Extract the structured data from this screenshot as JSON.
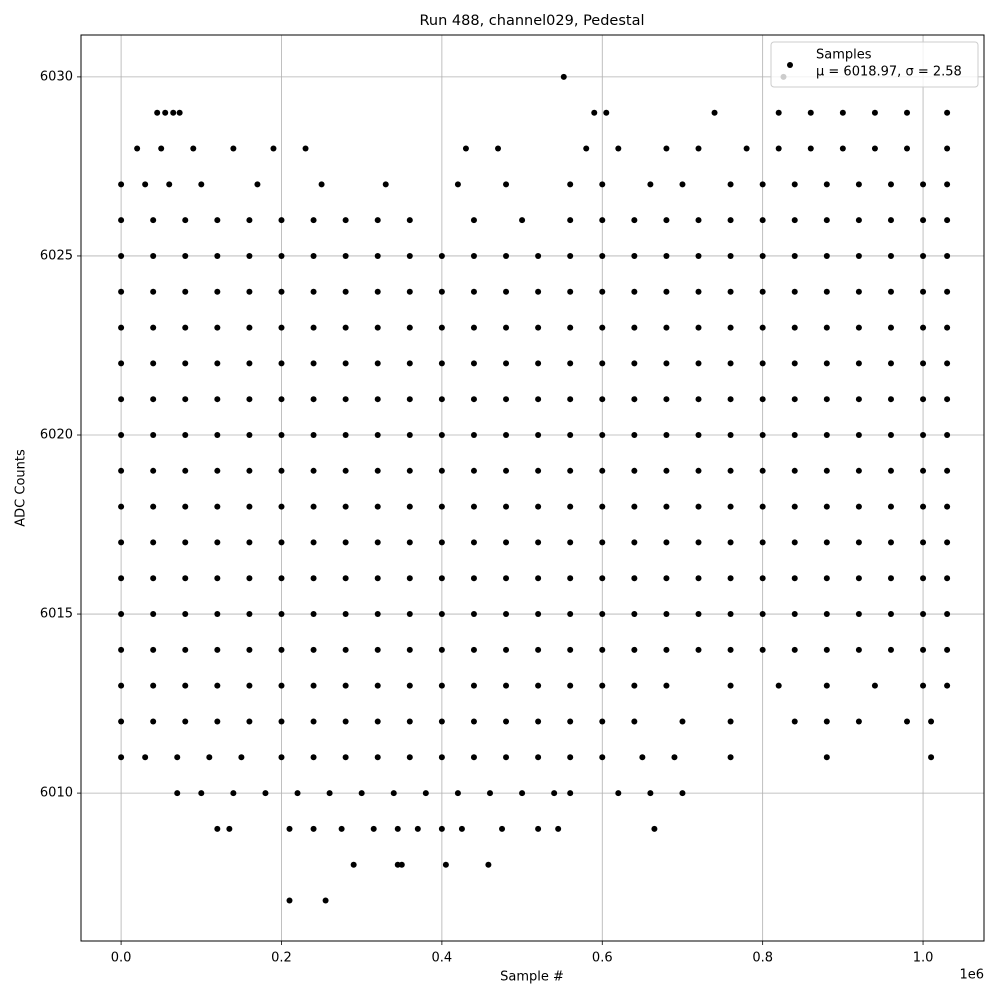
{
  "chart_data": {
    "type": "scatter",
    "title": "Run 488, channel029, Pedestal",
    "xlabel": "Sample #",
    "ylabel": "ADC Counts",
    "x_offset_label": "1e6",
    "xlim": [
      -50000,
      1076000
    ],
    "ylim": [
      6005.87,
      6031.17
    ],
    "xticks": [
      {
        "value": 0,
        "label": "0.0"
      },
      {
        "value": 200000,
        "label": "0.2"
      },
      {
        "value": 400000,
        "label": "0.4"
      },
      {
        "value": 600000,
        "label": "0.6"
      },
      {
        "value": 800000,
        "label": "0.8"
      },
      {
        "value": 1000000,
        "label": "1.0"
      }
    ],
    "yticks": [
      6010,
      6015,
      6020,
      6025,
      6030
    ],
    "grid": true,
    "legend": "upper right",
    "series": [
      {
        "name": "Samples",
        "legend_subtitle": "μ = 6018.97, σ = 2.58",
        "color": "#000000",
        "x": [
          0,
          40000,
          80000,
          120000,
          160000,
          200000,
          240000,
          280000,
          320000,
          360000,
          400000,
          440000,
          480000,
          520000,
          560000,
          600000,
          640000,
          680000,
          720000,
          760000,
          800000,
          840000,
          880000,
          920000,
          960000,
          1000000,
          1030000,
          0,
          40000,
          80000,
          120000,
          160000,
          200000,
          240000,
          280000,
          320000,
          360000,
          400000,
          440000,
          480000,
          520000,
          560000,
          600000,
          640000,
          680000,
          720000,
          760000,
          800000,
          840000,
          880000,
          920000,
          960000,
          1000000,
          1030000,
          0,
          40000,
          80000,
          120000,
          160000,
          200000,
          240000,
          280000,
          320000,
          360000,
          400000,
          440000,
          480000,
          520000,
          560000,
          600000,
          640000,
          680000,
          720000,
          760000,
          800000,
          840000,
          880000,
          920000,
          960000,
          1000000,
          1030000,
          0,
          40000,
          80000,
          120000,
          160000,
          200000,
          240000,
          280000,
          320000,
          360000,
          400000,
          440000,
          480000,
          520000,
          560000,
          600000,
          640000,
          680000,
          720000,
          760000,
          800000,
          840000,
          880000,
          920000,
          960000,
          1000000,
          1030000,
          0,
          40000,
          80000,
          120000,
          160000,
          200000,
          240000,
          280000,
          320000,
          360000,
          400000,
          440000,
          480000,
          520000,
          560000,
          600000,
          640000,
          680000,
          720000,
          760000,
          800000,
          840000,
          880000,
          920000,
          960000,
          1000000,
          1030000,
          0,
          40000,
          80000,
          120000,
          160000,
          200000,
          240000,
          280000,
          320000,
          360000,
          400000,
          440000,
          480000,
          520000,
          560000,
          600000,
          640000,
          680000,
          720000,
          760000,
          800000,
          840000,
          880000,
          920000,
          960000,
          1000000,
          1030000,
          0,
          40000,
          80000,
          120000,
          160000,
          200000,
          240000,
          280000,
          320000,
          360000,
          400000,
          440000,
          480000,
          520000,
          560000,
          600000,
          640000,
          680000,
          720000,
          760000,
          800000,
          840000,
          880000,
          920000,
          960000,
          1000000,
          1030000,
          0,
          40000,
          80000,
          120000,
          160000,
          200000,
          240000,
          280000,
          320000,
          360000,
          400000,
          440000,
          480000,
          520000,
          560000,
          600000,
          640000,
          680000,
          720000,
          760000,
          800000,
          840000,
          880000,
          920000,
          960000,
          1000000,
          1030000,
          0,
          40000,
          80000,
          120000,
          160000,
          200000,
          240000,
          280000,
          320000,
          360000,
          400000,
          440000,
          480000,
          520000,
          560000,
          600000,
          640000,
          680000,
          720000,
          760000,
          800000,
          840000,
          880000,
          920000,
          960000,
          1000000,
          1030000,
          0,
          40000,
          80000,
          120000,
          160000,
          200000,
          240000,
          280000,
          320000,
          360000,
          400000,
          440000,
          480000,
          520000,
          560000,
          600000,
          640000,
          680000,
          720000,
          760000,
          800000,
          840000,
          880000,
          920000,
          960000,
          1000000,
          1030000,
          0,
          40000,
          80000,
          120000,
          160000,
          200000,
          240000,
          280000,
          320000,
          360000,
          400000,
          440000,
          480000,
          520000,
          560000,
          600000,
          640000,
          680000,
          720000,
          760000,
          800000,
          840000,
          880000,
          920000,
          960000,
          1000000,
          1030000,
          0,
          40000,
          80000,
          120000,
          160000,
          200000,
          240000,
          280000,
          320000,
          360000,
          400000,
          440000,
          480000,
          520000,
          560000,
          600000,
          640000,
          680000,
          720000,
          760000,
          800000,
          840000,
          880000,
          920000,
          960000,
          1000000,
          1030000,
          0,
          40000,
          80000,
          120000,
          160000,
          200000,
          240000,
          280000,
          320000,
          360000,
          440000,
          500000,
          560000,
          600000,
          640000,
          680000,
          720000,
          760000,
          800000,
          840000,
          880000,
          920000,
          960000,
          1000000,
          1030000,
          0,
          40000,
          80000,
          120000,
          160000,
          200000,
          240000,
          280000,
          320000,
          360000,
          400000,
          440000,
          480000,
          520000,
          560000,
          600000,
          640000,
          680000,
          760000,
          820000,
          880000,
          940000,
          1000000,
          1030000,
          0,
          40000,
          80000,
          120000,
          160000,
          200000,
          240000,
          280000,
          320000,
          360000,
          400000,
          440000,
          480000,
          520000,
          560000,
          600000,
          640000,
          700000,
          760000,
          840000,
          880000,
          920000,
          980000,
          1010000,
          0,
          30000,
          60000,
          100000,
          170000,
          250000,
          330000,
          420000,
          480000,
          560000,
          600000,
          660000,
          700000,
          760000,
          800000,
          840000,
          880000,
          920000,
          960000,
          1000000,
          1030000,
          0,
          30000,
          70000,
          110000,
          150000,
          200000,
          240000,
          280000,
          320000,
          360000,
          400000,
          440000,
          480000,
          520000,
          560000,
          600000,
          650000,
          690000,
          760000,
          880000,
          1010000,
          20000,
          50000,
          90000,
          140000,
          190000,
          230000,
          430000,
          470000,
          580000,
          620000,
          680000,
          720000,
          780000,
          820000,
          860000,
          900000,
          940000,
          980000,
          1030000,
          70000,
          100000,
          140000,
          180000,
          220000,
          260000,
          300000,
          340000,
          380000,
          420000,
          460000,
          500000,
          540000,
          560000,
          620000,
          660000,
          700000,
          45000,
          55000,
          65000,
          73000,
          590000,
          605000,
          740000,
          820000,
          860000,
          900000,
          940000,
          980000,
          1030000,
          120000,
          135000,
          210000,
          240000,
          275000,
          315000,
          345000,
          370000,
          400000,
          425000,
          475000,
          520000,
          545000,
          665000,
          290000,
          345000,
          350000,
          405000,
          458000,
          210000,
          255000,
          552000,
          826000
        ],
        "values": [
          6014,
          6014,
          6014,
          6014,
          6014,
          6014,
          6014,
          6014,
          6014,
          6014,
          6014,
          6014,
          6014,
          6014,
          6014,
          6014,
          6014,
          6014,
          6014,
          6014,
          6014,
          6014,
          6014,
          6014,
          6014,
          6014,
          6014,
          6015,
          6015,
          6015,
          6015,
          6015,
          6015,
          6015,
          6015,
          6015,
          6015,
          6015,
          6015,
          6015,
          6015,
          6015,
          6015,
          6015,
          6015,
          6015,
          6015,
          6015,
          6015,
          6015,
          6015,
          6015,
          6015,
          6015,
          6016,
          6016,
          6016,
          6016,
          6016,
          6016,
          6016,
          6016,
          6016,
          6016,
          6016,
          6016,
          6016,
          6016,
          6016,
          6016,
          6016,
          6016,
          6016,
          6016,
          6016,
          6016,
          6016,
          6016,
          6016,
          6016,
          6016,
          6017,
          6017,
          6017,
          6017,
          6017,
          6017,
          6017,
          6017,
          6017,
          6017,
          6017,
          6017,
          6017,
          6017,
          6017,
          6017,
          6017,
          6017,
          6017,
          6017,
          6017,
          6017,
          6017,
          6017,
          6017,
          6017,
          6017,
          6018,
          6018,
          6018,
          6018,
          6018,
          6018,
          6018,
          6018,
          6018,
          6018,
          6018,
          6018,
          6018,
          6018,
          6018,
          6018,
          6018,
          6018,
          6018,
          6018,
          6018,
          6018,
          6018,
          6018,
          6018,
          6018,
          6018,
          6019,
          6019,
          6019,
          6019,
          6019,
          6019,
          6019,
          6019,
          6019,
          6019,
          6019,
          6019,
          6019,
          6019,
          6019,
          6019,
          6019,
          6019,
          6019,
          6019,
          6019,
          6019,
          6019,
          6019,
          6019,
          6019,
          6019,
          6020,
          6020,
          6020,
          6020,
          6020,
          6020,
          6020,
          6020,
          6020,
          6020,
          6020,
          6020,
          6020,
          6020,
          6020,
          6020,
          6020,
          6020,
          6020,
          6020,
          6020,
          6020,
          6020,
          6020,
          6020,
          6020,
          6020,
          6021,
          6021,
          6021,
          6021,
          6021,
          6021,
          6021,
          6021,
          6021,
          6021,
          6021,
          6021,
          6021,
          6021,
          6021,
          6021,
          6021,
          6021,
          6021,
          6021,
          6021,
          6021,
          6021,
          6021,
          6021,
          6021,
          6021,
          6022,
          6022,
          6022,
          6022,
          6022,
          6022,
          6022,
          6022,
          6022,
          6022,
          6022,
          6022,
          6022,
          6022,
          6022,
          6022,
          6022,
          6022,
          6022,
          6022,
          6022,
          6022,
          6022,
          6022,
          6022,
          6022,
          6022,
          6023,
          6023,
          6023,
          6023,
          6023,
          6023,
          6023,
          6023,
          6023,
          6023,
          6023,
          6023,
          6023,
          6023,
          6023,
          6023,
          6023,
          6023,
          6023,
          6023,
          6023,
          6023,
          6023,
          6023,
          6023,
          6023,
          6023,
          6024,
          6024,
          6024,
          6024,
          6024,
          6024,
          6024,
          6024,
          6024,
          6024,
          6024,
          6024,
          6024,
          6024,
          6024,
          6024,
          6024,
          6024,
          6024,
          6024,
          6024,
          6024,
          6024,
          6024,
          6024,
          6024,
          6024,
          6025,
          6025,
          6025,
          6025,
          6025,
          6025,
          6025,
          6025,
          6025,
          6025,
          6025,
          6025,
          6025,
          6025,
          6025,
          6025,
          6025,
          6025,
          6025,
          6025,
          6025,
          6025,
          6025,
          6025,
          6025,
          6025,
          6025,
          6026,
          6026,
          6026,
          6026,
          6026,
          6026,
          6026,
          6026,
          6026,
          6026,
          6026,
          6026,
          6026,
          6026,
          6026,
          6026,
          6026,
          6026,
          6026,
          6026,
          6026,
          6026,
          6026,
          6026,
          6026,
          6013,
          6013,
          6013,
          6013,
          6013,
          6013,
          6013,
          6013,
          6013,
          6013,
          6013,
          6013,
          6013,
          6013,
          6013,
          6013,
          6013,
          6013,
          6013,
          6013,
          6013,
          6013,
          6013,
          6013,
          6012,
          6012,
          6012,
          6012,
          6012,
          6012,
          6012,
          6012,
          6012,
          6012,
          6012,
          6012,
          6012,
          6012,
          6012,
          6012,
          6012,
          6012,
          6012,
          6012,
          6012,
          6012,
          6012,
          6012,
          6027,
          6027,
          6027,
          6027,
          6027,
          6027,
          6027,
          6027,
          6027,
          6027,
          6027,
          6027,
          6027,
          6027,
          6027,
          6027,
          6027,
          6027,
          6027,
          6027,
          6027,
          6011,
          6011,
          6011,
          6011,
          6011,
          6011,
          6011,
          6011,
          6011,
          6011,
          6011,
          6011,
          6011,
          6011,
          6011,
          6011,
          6011,
          6011,
          6011,
          6011,
          6011,
          6028,
          6028,
          6028,
          6028,
          6028,
          6028,
          6028,
          6028,
          6028,
          6028,
          6028,
          6028,
          6028,
          6028,
          6028,
          6028,
          6028,
          6028,
          6028,
          6010,
          6010,
          6010,
          6010,
          6010,
          6010,
          6010,
          6010,
          6010,
          6010,
          6010,
          6010,
          6010,
          6010,
          6010,
          6010,
          6010,
          6029,
          6029,
          6029,
          6029,
          6029,
          6029,
          6029,
          6029,
          6029,
          6029,
          6029,
          6029,
          6029,
          6009,
          6009,
          6009,
          6009,
          6009,
          6009,
          6009,
          6009,
          6009,
          6009,
          6009,
          6009,
          6009,
          6009,
          6008,
          6008,
          6008,
          6008,
          6008,
          6007,
          6007,
          6030,
          6030
        ]
      }
    ]
  }
}
